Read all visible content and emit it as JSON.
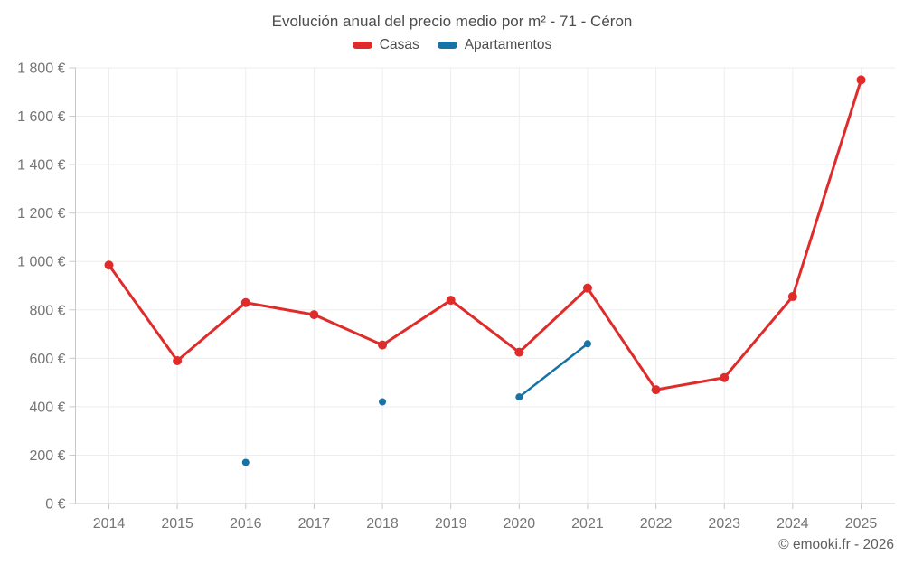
{
  "title": "Evolución anual del precio medio por m² - 71 - Céron",
  "legend": {
    "items": [
      {
        "label": "Casas",
        "color": "#e02b2b"
      },
      {
        "label": "Apartamentos",
        "color": "#1772a5"
      }
    ]
  },
  "attribution": "© emooki.fr - 2026",
  "chart_data": {
    "type": "line",
    "title": "Evolución anual del precio medio por m² - 71 - Céron",
    "categories": [
      "2014",
      "2015",
      "2016",
      "2017",
      "2018",
      "2019",
      "2020",
      "2021",
      "2022",
      "2023",
      "2024",
      "2025"
    ],
    "series": [
      {
        "name": "Casas",
        "color": "#e02b2b",
        "line_width": 3,
        "point_radius": 5,
        "values": [
          985,
          590,
          830,
          780,
          655,
          840,
          625,
          890,
          470,
          520,
          855,
          1750
        ]
      },
      {
        "name": "Apartamentos",
        "color": "#1772a5",
        "line_width": 2.5,
        "point_radius": 4,
        "values": [
          null,
          null,
          170,
          null,
          420,
          null,
          440,
          660,
          null,
          null,
          null,
          null
        ]
      }
    ],
    "xlabel": "",
    "ylabel": "",
    "ylim": [
      0,
      1800
    ],
    "ytick_step": 200,
    "y_tick_labels": [
      "0 €",
      "200 €",
      "400 €",
      "600 €",
      "800 €",
      "1 000 €",
      "1 200 €",
      "1 400 €",
      "1 600 €",
      "1 800 €"
    ],
    "grid": true,
    "legend_position": "top",
    "currency_suffix": "€"
  }
}
